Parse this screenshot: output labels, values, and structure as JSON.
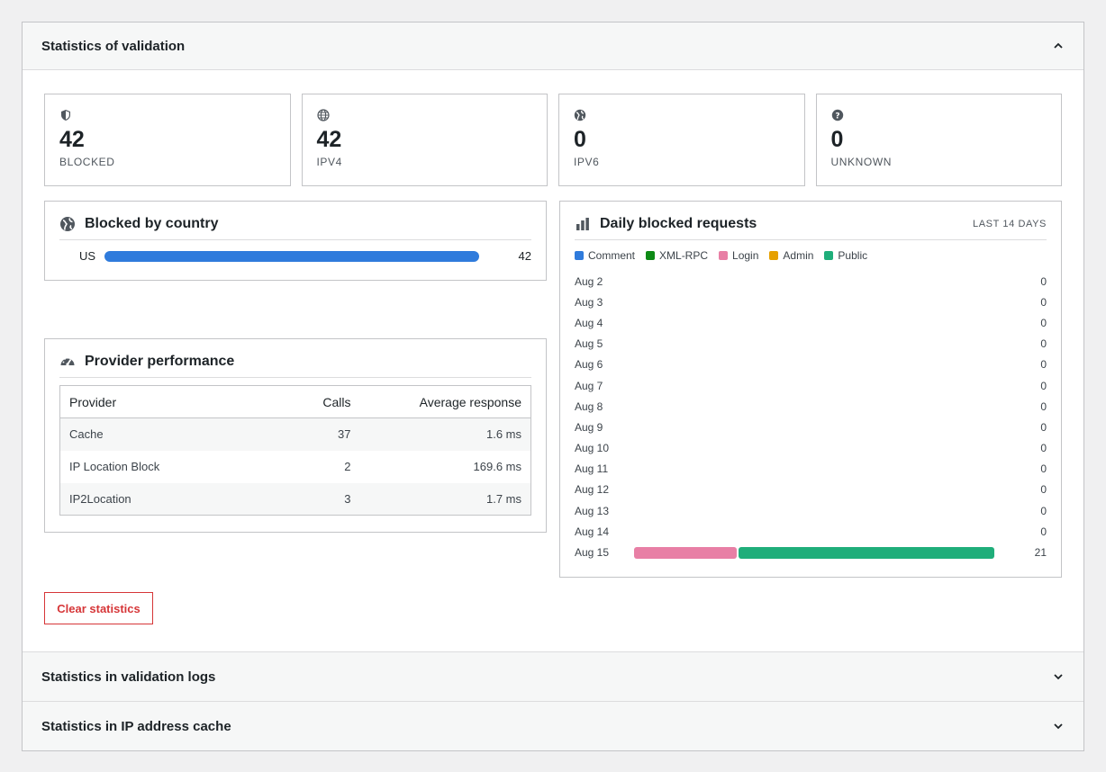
{
  "sections": {
    "validation": {
      "title": "Statistics of validation",
      "chevron": "chevron-up-icon"
    },
    "logs": {
      "title": "Statistics in validation logs",
      "chevron": "chevron-down-icon"
    },
    "cache": {
      "title": "Statistics in IP address cache",
      "chevron": "chevron-down-icon"
    }
  },
  "cards": [
    {
      "icon": "shield-icon",
      "value": "42",
      "label": "BLOCKED"
    },
    {
      "icon": "globe-icon",
      "value": "42",
      "label": "IPV4"
    },
    {
      "icon": "globe-filled-icon",
      "value": "0",
      "label": "IPV6"
    },
    {
      "icon": "question-icon",
      "value": "0",
      "label": "UNKNOWN"
    }
  ],
  "country": {
    "title": "Blocked by country",
    "icon": "globe-filled-icon",
    "rows": [
      {
        "code": "US",
        "value": "42",
        "share": 1.0
      }
    ],
    "bar_color": "#2f7bdc"
  },
  "provider": {
    "title": "Provider performance",
    "icon": "dashboard-icon",
    "headers": [
      "Provider",
      "Calls",
      "Average response"
    ],
    "rows": [
      [
        "Cache",
        "37",
        "1.6 ms"
      ],
      [
        "IP Location Block",
        "2",
        "169.6 ms"
      ],
      [
        "IP2Location",
        "3",
        "1.7 ms"
      ]
    ]
  },
  "daily": {
    "title": "Daily blocked requests",
    "icon": "bar-chart-icon",
    "range": "LAST 14 DAYS",
    "legend": [
      {
        "name": "Comment",
        "color": "#2f7bdc"
      },
      {
        "name": "XML-RPC",
        "color": "#0e8a16"
      },
      {
        "name": "Login",
        "color": "#e87fa5"
      },
      {
        "name": "Admin",
        "color": "#e6a000"
      },
      {
        "name": "Public",
        "color": "#1fae7a"
      }
    ],
    "max_total": 21,
    "rows": [
      {
        "date": "Aug 2",
        "total": "0",
        "segments": []
      },
      {
        "date": "Aug 3",
        "total": "0",
        "segments": []
      },
      {
        "date": "Aug 4",
        "total": "0",
        "segments": []
      },
      {
        "date": "Aug 5",
        "total": "0",
        "segments": []
      },
      {
        "date": "Aug 6",
        "total": "0",
        "segments": []
      },
      {
        "date": "Aug 7",
        "total": "0",
        "segments": []
      },
      {
        "date": "Aug 8",
        "total": "0",
        "segments": []
      },
      {
        "date": "Aug 9",
        "total": "0",
        "segments": []
      },
      {
        "date": "Aug 10",
        "total": "0",
        "segments": []
      },
      {
        "date": "Aug 11",
        "total": "0",
        "segments": []
      },
      {
        "date": "Aug 12",
        "total": "0",
        "segments": []
      },
      {
        "date": "Aug 13",
        "total": "0",
        "segments": []
      },
      {
        "date": "Aug 14",
        "total": "0",
        "segments": []
      },
      {
        "date": "Aug 15",
        "total": "21",
        "segments": [
          {
            "type": "Login",
            "value": 6
          },
          {
            "type": "Public",
            "value": 15
          }
        ]
      }
    ]
  },
  "clear_button": "Clear statistics"
}
